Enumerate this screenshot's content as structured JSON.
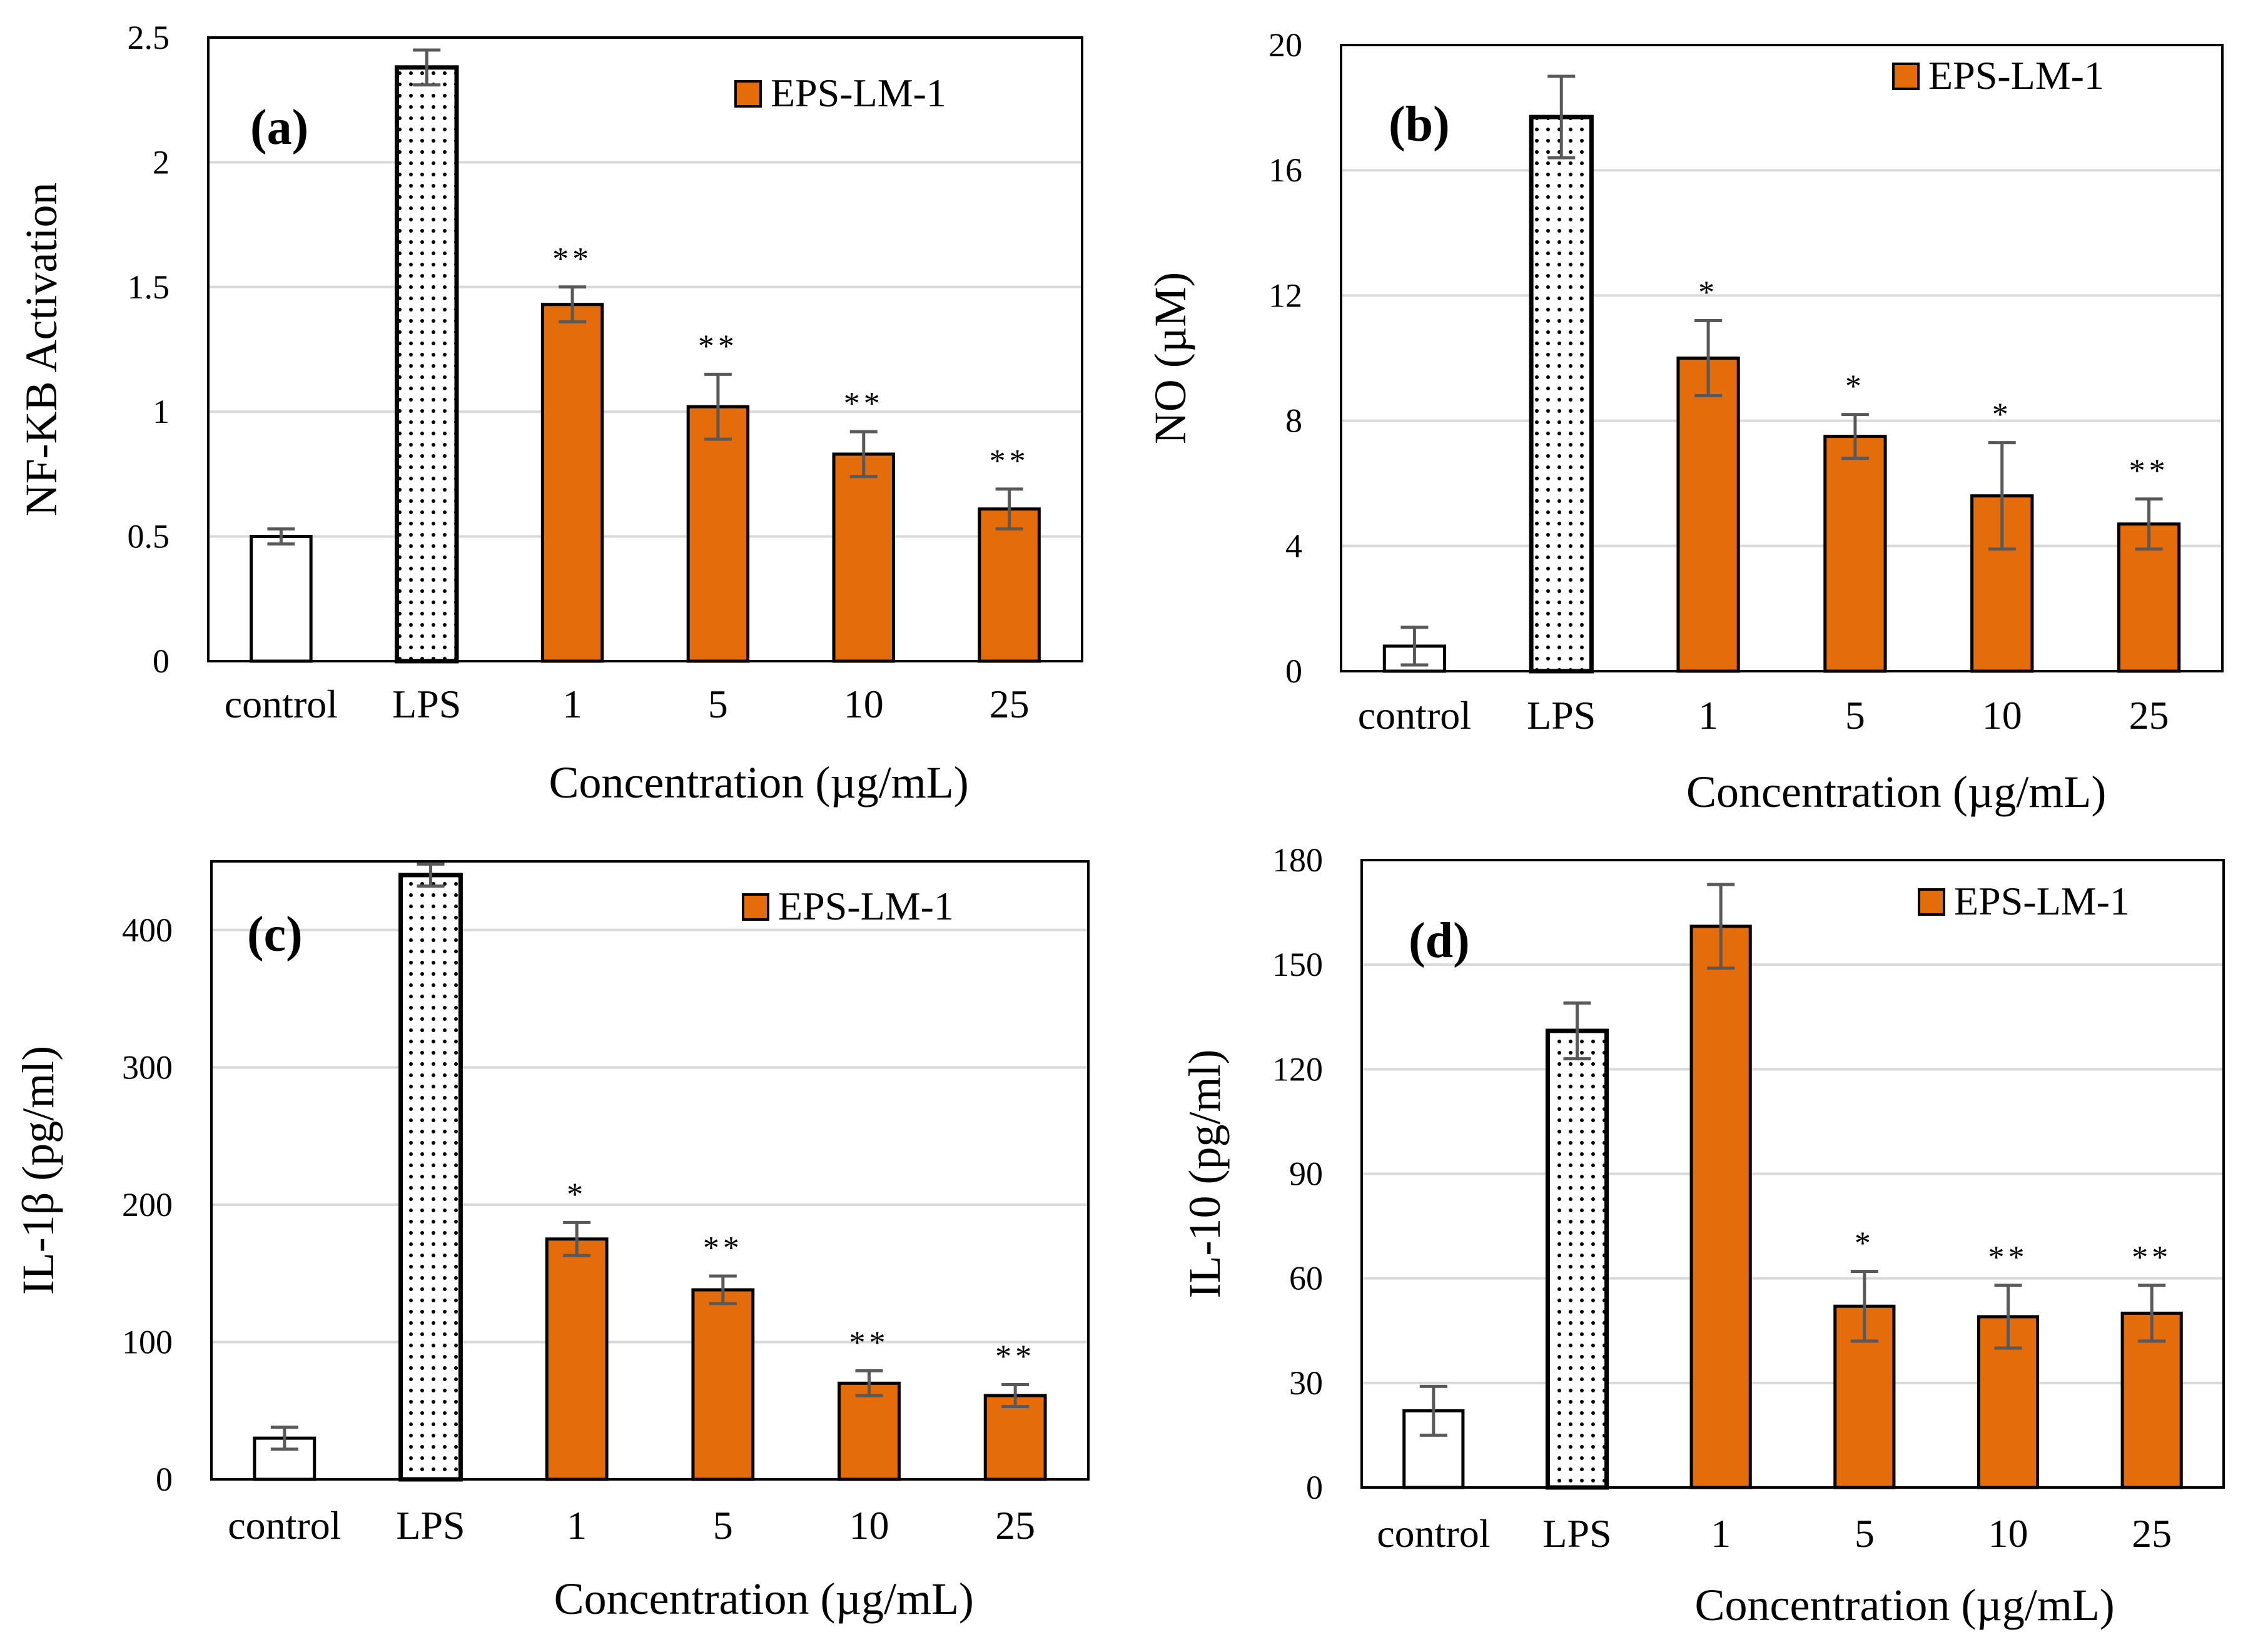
{
  "colors": {
    "series": "#E46C0A",
    "stroke": "#000000",
    "grid": "#D9D9D9",
    "errorbar": "#595959"
  },
  "chart_data": [
    {
      "type": "bar",
      "panel": "(a)",
      "ylabel": "NF-KB Activation",
      "xlabel": "Concentration (µg/mL)",
      "categories": [
        "control",
        "LPS",
        "1",
        "5",
        "10",
        "25"
      ],
      "values": [
        0.5,
        2.38,
        1.43,
        1.02,
        0.83,
        0.61
      ],
      "errors": [
        0.03,
        0.07,
        0.07,
        0.13,
        0.09,
        0.08
      ],
      "significance": [
        "",
        "",
        "**",
        "**",
        "**",
        "**"
      ],
      "ylim": [
        0,
        2.5
      ],
      "yticks": [
        "0",
        "0.5",
        "1",
        "1.5",
        "2",
        "2.5"
      ],
      "legend": "EPS-LM-1",
      "grid": true
    },
    {
      "type": "bar",
      "panel": "(b)",
      "ylabel": "NO (µM)",
      "xlabel": "Concentration (µg/mL)",
      "categories": [
        "control",
        "LPS",
        "1",
        "5",
        "10",
        "25"
      ],
      "values": [
        0.8,
        17.7,
        10.0,
        7.5,
        5.6,
        4.7
      ],
      "errors": [
        0.6,
        1.3,
        1.2,
        0.7,
        1.7,
        0.8
      ],
      "significance": [
        "",
        "",
        "*",
        "*",
        "*",
        "**"
      ],
      "ylim": [
        0,
        20
      ],
      "yticks": [
        "0",
        "4",
        "8",
        "12",
        "16",
        "20"
      ],
      "legend": "EPS-LM-1",
      "grid": true
    },
    {
      "type": "bar",
      "panel": "(c)",
      "ylabel": "IL-1β (pg/ml)",
      "xlabel": "Concentration (µg/mL)",
      "categories": [
        "control",
        "LPS",
        "1",
        "5",
        "10",
        "25"
      ],
      "values": [
        30,
        440,
        175,
        138,
        70,
        61
      ],
      "errors": [
        8,
        8,
        12,
        10,
        9,
        8
      ],
      "significance": [
        "",
        "",
        "*",
        "**",
        "**",
        "**"
      ],
      "ylim": [
        0,
        450
      ],
      "yticks": [
        "0",
        "100",
        "200",
        "300",
        "400"
      ],
      "ytick_values": [
        0,
        100,
        200,
        300,
        400
      ],
      "legend": "EPS-LM-1",
      "grid": true
    },
    {
      "type": "bar",
      "panel": "(d)",
      "ylabel": "IL-10 (pg/ml)",
      "xlabel": "Concentration (µg/mL)",
      "categories": [
        "control",
        "LPS",
        "1",
        "5",
        "10",
        "25"
      ],
      "values": [
        22,
        131,
        161,
        52,
        49,
        50
      ],
      "errors": [
        7,
        8,
        12,
        10,
        9,
        8
      ],
      "significance": [
        "",
        "",
        "",
        "*",
        "**",
        "**"
      ],
      "ylim": [
        0,
        180
      ],
      "yticks": [
        "0",
        "30",
        "60",
        "90",
        "120",
        "150",
        "180"
      ],
      "legend": "EPS-LM-1",
      "grid": true
    }
  ]
}
